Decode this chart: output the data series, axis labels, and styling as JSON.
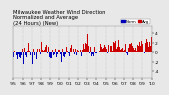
{
  "title": "Milwaukee Weather Wind Direction\nNormalized and Average\n(24 Hours) (New)",
  "title_fontsize": 3.8,
  "bg_color": "#e8e8e8",
  "plot_bg_color": "#e8e8e8",
  "grid_color": "#aaaaaa",
  "bar_color_pos": "#cc0000",
  "bar_color_neg": "#0000bb",
  "legend_labels": [
    "Norm",
    "Avg"
  ],
  "legend_colors": [
    "#0000bb",
    "#cc0000"
  ],
  "n_points": 520,
  "y_min": -5.5,
  "y_max": 5.5,
  "x_tick_labels": [
    "'95",
    "'96",
    "'97",
    "'98",
    "'99",
    "'00",
    "'01",
    "'02",
    "'03",
    "'04",
    "'05",
    "'06",
    "'07",
    "'08",
    "'09",
    "'10"
  ],
  "ytick_labels": [
    "-4",
    "-2",
    "0",
    "2",
    "4"
  ],
  "ytick_values": [
    -4,
    -2,
    0,
    2,
    4
  ],
  "tick_fontsize": 3.2,
  "seed": 99,
  "trend_strength": 2.2,
  "noise_scale": 1.9
}
